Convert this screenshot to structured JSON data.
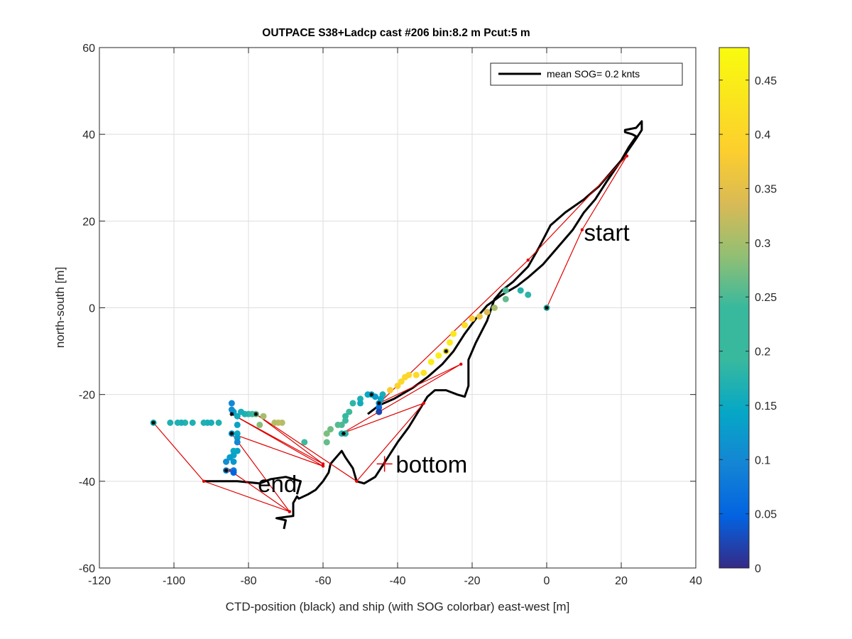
{
  "chart_data": {
    "type": "scatter",
    "title": "OUTPACE S38+Ladcp cast #206 bin:8.2 m  Pcut:5 m",
    "xlabel": "CTD-position (black) and ship (with SOG colorbar) east-west [m]",
    "ylabel": "north-south [m]",
    "xlim": [
      -120,
      40
    ],
    "ylim": [
      -60,
      60
    ],
    "x_ticks": [
      -120,
      -100,
      -80,
      -60,
      -40,
      -20,
      0,
      20,
      40
    ],
    "y_ticks": [
      -60,
      -40,
      -20,
      0,
      20,
      40,
      60
    ],
    "grid": true,
    "legend": {
      "location": "top-right",
      "entries": [
        "mean SOG=  0.2 knts"
      ]
    },
    "colorbar": {
      "range": [
        0,
        0.48
      ],
      "ticks": [
        "0",
        "0.05",
        "0.1",
        "0.15",
        "0.2",
        "0.25",
        "0.3",
        "0.35",
        "0.4",
        "0.45"
      ],
      "tick_values": [
        0,
        0.05,
        0.1,
        0.15,
        0.2,
        0.25,
        0.3,
        0.35,
        0.4,
        0.45
      ],
      "colormap": "parula"
    },
    "annotations": [
      {
        "text": "start",
        "x": 10,
        "y": 15.5
      },
      {
        "text": "bottom",
        "x": -40.5,
        "y": -38
      },
      {
        "text": "end",
        "x": -77.5,
        "y": -42.5
      }
    ],
    "bottom_marker": {
      "x": -43.5,
      "y": -36
    },
    "ctd_track": [
      [
        -70.5,
        -51
      ],
      [
        -70,
        -49
      ],
      [
        -72.5,
        -48.5
      ],
      [
        -68,
        -48
      ],
      [
        -68,
        -45
      ],
      [
        -67,
        -43.5
      ],
      [
        -66.5,
        -44
      ],
      [
        -64,
        -43
      ],
      [
        -62,
        -42
      ],
      [
        -60,
        -40
      ],
      [
        -58.5,
        -38
      ],
      [
        -58,
        -36
      ],
      [
        -56,
        -34
      ],
      [
        -55,
        -33
      ],
      [
        -54,
        -34.5
      ],
      [
        -52,
        -37
      ],
      [
        -51,
        -40
      ],
      [
        -49,
        -40.5
      ],
      [
        -46,
        -39
      ],
      [
        -43,
        -35
      ],
      [
        -40,
        -31
      ],
      [
        -37,
        -27.5
      ],
      [
        -34.5,
        -24
      ],
      [
        -32,
        -20.5
      ],
      [
        -30,
        -19
      ],
      [
        -27,
        -19
      ],
      [
        -24,
        -20
      ],
      [
        -22,
        -20.5
      ],
      [
        -21,
        -18
      ],
      [
        -21,
        -12
      ],
      [
        -19,
        -8
      ],
      [
        -16,
        -3
      ],
      [
        -14,
        2
      ],
      [
        -12,
        4
      ],
      [
        -9,
        6
      ],
      [
        -5,
        9.5
      ],
      [
        -2,
        14
      ],
      [
        1,
        19
      ],
      [
        5,
        22
      ],
      [
        10,
        25
      ],
      [
        14,
        28
      ],
      [
        17,
        31
      ],
      [
        20,
        34
      ],
      [
        22,
        37
      ],
      [
        24,
        39.5
      ],
      [
        23,
        40
      ],
      [
        21,
        40.5
      ],
      [
        21,
        41
      ],
      [
        24,
        41.5
      ],
      [
        25.5,
        43
      ],
      [
        25.5,
        41
      ],
      [
        24,
        39
      ],
      [
        20,
        34
      ],
      [
        16,
        29
      ],
      [
        13,
        25
      ],
      [
        10,
        22
      ],
      [
        7,
        18
      ],
      [
        3,
        14
      ],
      [
        -1,
        10
      ],
      [
        -5,
        7
      ],
      [
        -8,
        5
      ],
      [
        -10,
        4
      ],
      [
        -12,
        3
      ],
      [
        -16,
        0.5
      ],
      [
        -19,
        -2.5
      ],
      [
        -22,
        -6
      ],
      [
        -25,
        -10
      ],
      [
        -28,
        -13
      ],
      [
        -32,
        -16
      ],
      [
        -36,
        -18.5
      ],
      [
        -41,
        -21
      ],
      [
        -45,
        -22.5
      ],
      [
        -48,
        -24.5
      ]
    ],
    "ctd_track_end": [
      [
        -67,
        -43
      ],
      [
        -66,
        -40
      ],
      [
        -70,
        -39
      ],
      [
        -74,
        -39.5
      ],
      [
        -77,
        -40.5
      ],
      [
        -83,
        -40
      ],
      [
        -87,
        -40
      ],
      [
        -92,
        -40
      ]
    ],
    "red_path": [
      [
        0,
        0
      ],
      [
        9.5,
        18
      ],
      [
        21.5,
        35
      ],
      [
        -5,
        11
      ],
      [
        -45,
        -22
      ],
      [
        -23,
        -13
      ],
      [
        -55,
        -29
      ],
      [
        -33,
        -22
      ],
      [
        -51,
        -40
      ],
      [
        -78,
        -24.5
      ],
      [
        -60,
        -36
      ],
      [
        -84.5,
        -24.5
      ],
      [
        -60,
        -36.5
      ],
      [
        -84.5,
        -29
      ],
      [
        -69,
        -47
      ],
      [
        -85,
        -37.5
      ],
      [
        -69,
        -47
      ],
      [
        -92,
        -40
      ],
      [
        -105.5,
        -26.5
      ]
    ],
    "ship_points": [
      [
        0,
        0,
        0.2
      ],
      [
        -5,
        3,
        0.2
      ],
      [
        -7,
        4,
        0.19
      ],
      [
        -11,
        2,
        0.25
      ],
      [
        -11,
        4,
        0.23
      ],
      [
        -14,
        0,
        0.3
      ],
      [
        -16,
        -1,
        0.34
      ],
      [
        -18,
        -2,
        0.36
      ],
      [
        -20,
        -2.5,
        0.38
      ],
      [
        -22,
        -4,
        0.42
      ],
      [
        -25,
        -6,
        0.44
      ],
      [
        -26,
        -8,
        0.45
      ],
      [
        -27,
        -10,
        0.44
      ],
      [
        -29,
        -11,
        0.45
      ],
      [
        -31,
        -12.5,
        0.45
      ],
      [
        -33,
        -15,
        0.43
      ],
      [
        -35,
        -15.5,
        0.41
      ],
      [
        -37,
        -15.5,
        0.4
      ],
      [
        -38,
        -16,
        0.4
      ],
      [
        -39,
        -17,
        0.41
      ],
      [
        -40,
        -18,
        0.39
      ],
      [
        -42,
        -19,
        0.38
      ],
      [
        -44,
        -20,
        0.17
      ],
      [
        -44.5,
        -21,
        0.15
      ],
      [
        -45,
        -22,
        0.12
      ],
      [
        -45,
        -23,
        0.06
      ],
      [
        -45,
        -24,
        0.02
      ],
      [
        -46,
        -20.5,
        0.13
      ],
      [
        -47,
        -20,
        0.14
      ],
      [
        -48,
        -20,
        0.15
      ],
      [
        -50,
        -21,
        0.18
      ],
      [
        -50,
        -22,
        0.16
      ],
      [
        -52,
        -22,
        0.2
      ],
      [
        -53,
        -24,
        0.22
      ],
      [
        -54,
        -25,
        0.21
      ],
      [
        -54,
        -26,
        0.22
      ],
      [
        -55,
        -27,
        0.23
      ],
      [
        -56,
        -27,
        0.24
      ],
      [
        -58,
        -28,
        0.26
      ],
      [
        -59,
        -29,
        0.27
      ],
      [
        -59,
        -31,
        0.25
      ],
      [
        -54,
        -29,
        0.2
      ],
      [
        -55,
        -29,
        0.19
      ],
      [
        -65,
        -31,
        0.22
      ],
      [
        -71,
        -26.5,
        0.31
      ],
      [
        -72,
        -26.5,
        0.32
      ],
      [
        -73,
        -26.5,
        0.31
      ],
      [
        -76,
        -25,
        0.3
      ],
      [
        -77,
        -27,
        0.28
      ],
      [
        -78,
        -24.5,
        0.26
      ],
      [
        -79,
        -24.5,
        0.22
      ],
      [
        -80,
        -24.5,
        0.2
      ],
      [
        -81,
        -24.5,
        0.18
      ],
      [
        -82,
        -24,
        0.17
      ],
      [
        -83,
        -25,
        0.16
      ],
      [
        -84,
        -24,
        0.14
      ],
      [
        -84.5,
        -22,
        0.1
      ],
      [
        -84.5,
        -23.5,
        0.11
      ],
      [
        -84.5,
        -29,
        0.12
      ],
      [
        -83,
        -27,
        0.14
      ],
      [
        -83,
        -29,
        0.15
      ],
      [
        -83,
        -30,
        0.13
      ],
      [
        -83,
        -31,
        0.1
      ],
      [
        -83,
        -33,
        0.14
      ],
      [
        -84,
        -33,
        0.15
      ],
      [
        -84,
        -34,
        0.14
      ],
      [
        -85,
        -34.5,
        0.13
      ],
      [
        -84,
        -35.5,
        0.12
      ],
      [
        -86,
        -35.5,
        0.11
      ],
      [
        -86,
        -37.5,
        0.1
      ],
      [
        -84,
        -37.5,
        0.08
      ],
      [
        -84,
        -38,
        0.05
      ],
      [
        -88,
        -26.5,
        0.18
      ],
      [
        -90,
        -26.5,
        0.17
      ],
      [
        -91,
        -26.5,
        0.17
      ],
      [
        -92,
        -26.5,
        0.18
      ],
      [
        -95,
        -26.5,
        0.18
      ],
      [
        -97,
        -26.5,
        0.19
      ],
      [
        -98,
        -26.5,
        0.17
      ],
      [
        -99,
        -26.5,
        0.18
      ],
      [
        -101,
        -26.5,
        0.18
      ],
      [
        -105.5,
        -26.5,
        0.17
      ]
    ],
    "black_star_points": [
      [
        0,
        0
      ],
      [
        -27,
        -10
      ],
      [
        -47,
        -20
      ],
      [
        -45,
        -22
      ],
      [
        -54.5,
        -29
      ],
      [
        -78,
        -24.5
      ],
      [
        -84.5,
        -24.5
      ],
      [
        -84.5,
        -29
      ],
      [
        -86,
        -37.5
      ],
      [
        -105.5,
        -26.5
      ]
    ]
  }
}
